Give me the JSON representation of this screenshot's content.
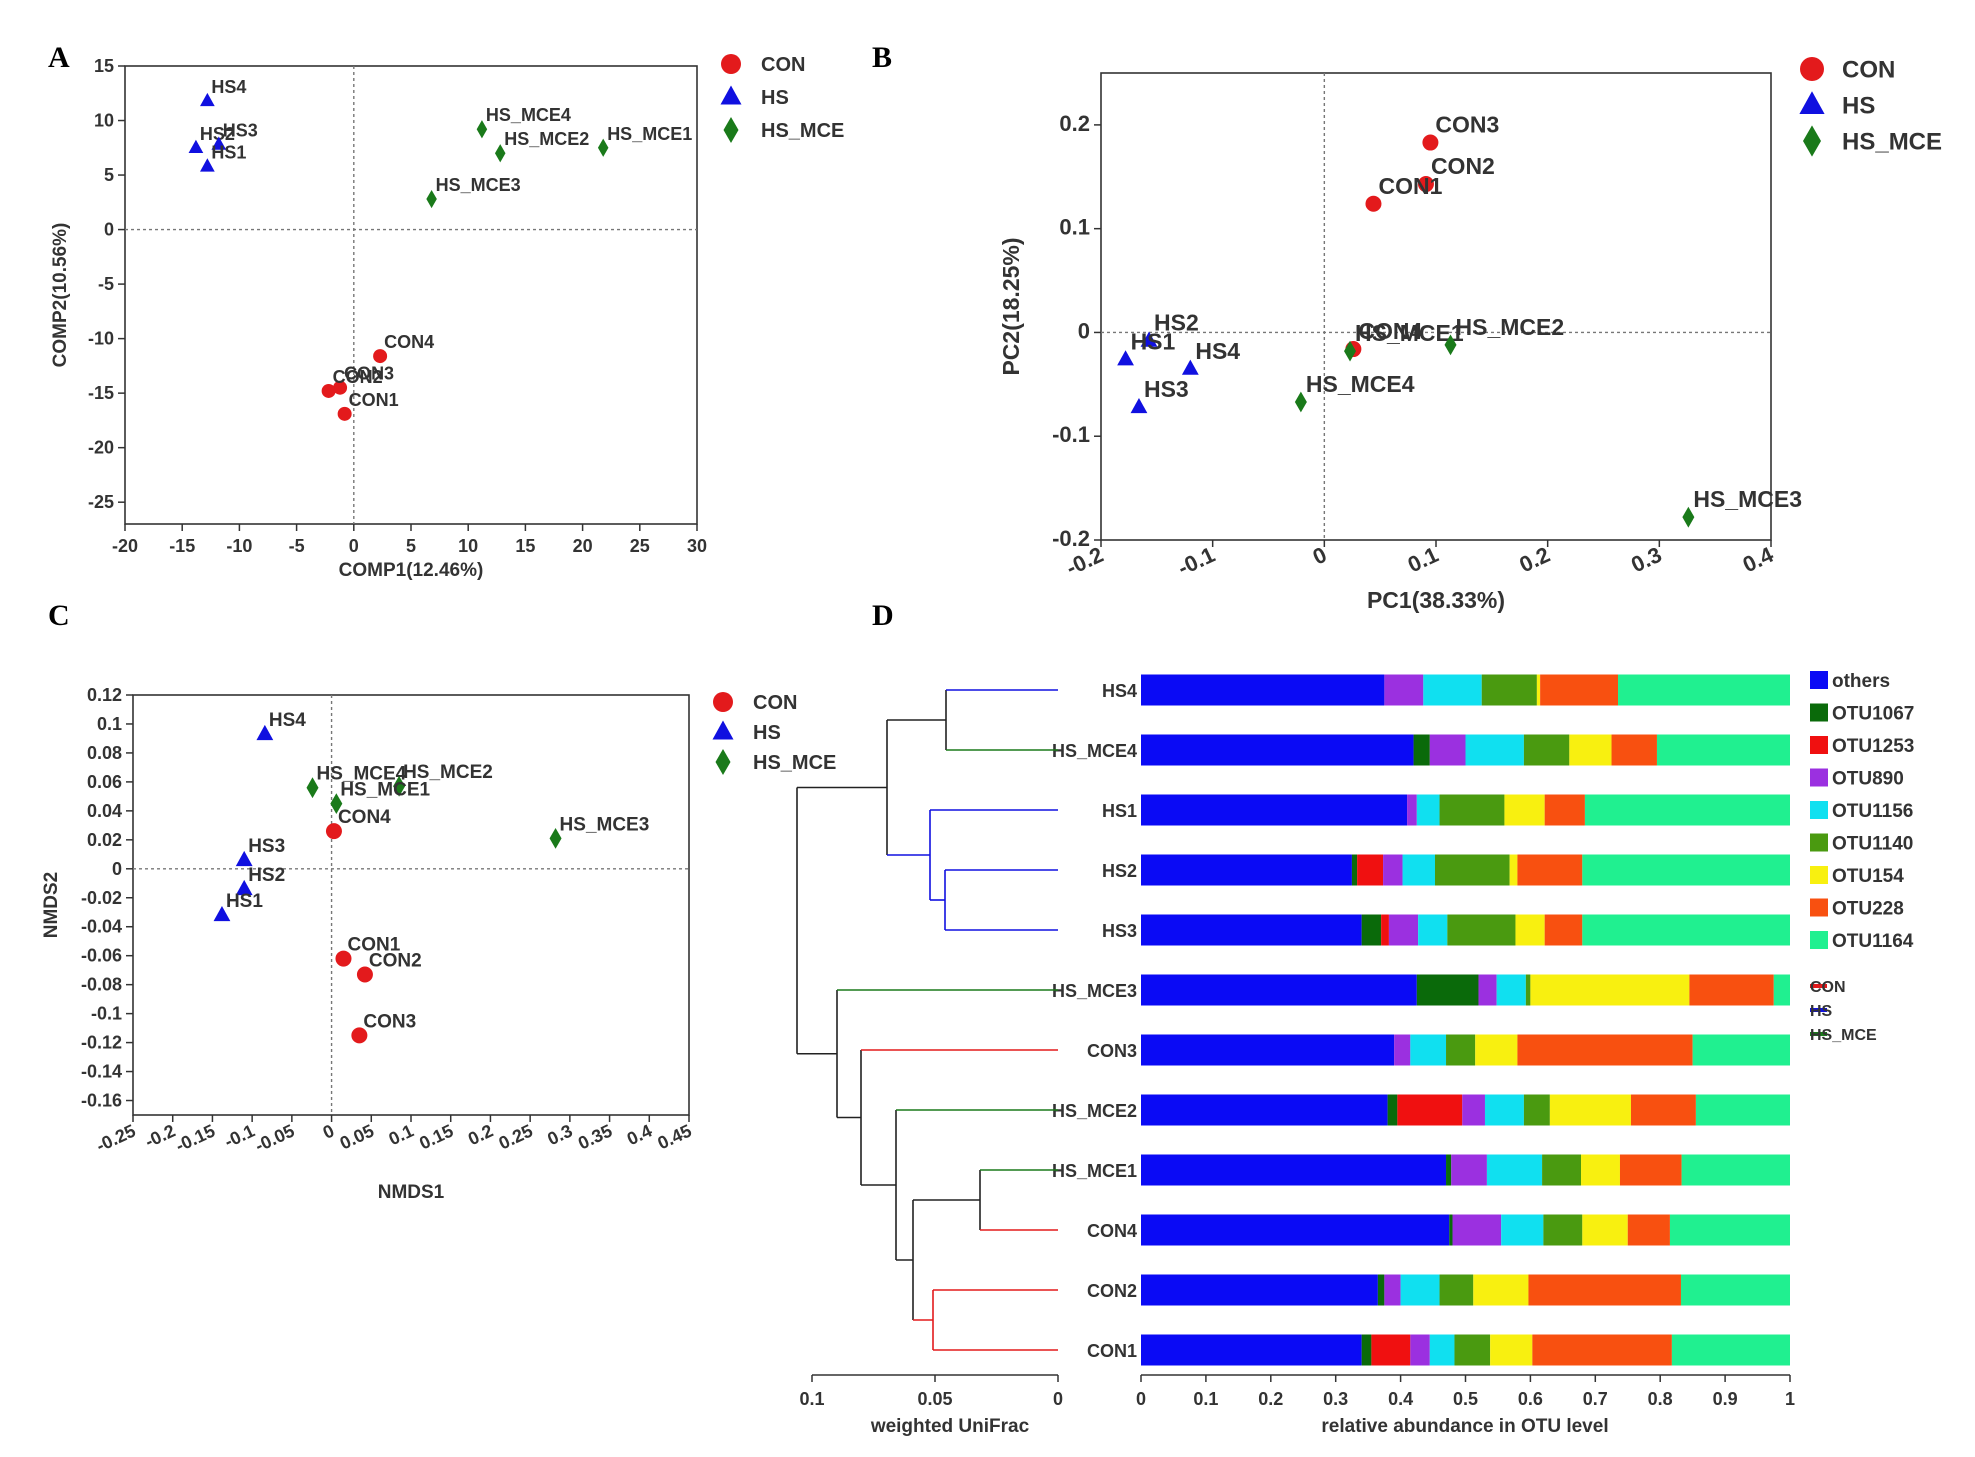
{
  "chart_data": [
    {
      "panel": "A",
      "type": "scatter",
      "xlabel": "COMP1(12.46%)",
      "ylabel": "COMP2(10.56%)",
      "xlim": [
        -20,
        30
      ],
      "ylim": [
        -27,
        15
      ],
      "xticks": [
        -20,
        -15,
        -10,
        -5,
        0,
        5,
        10,
        15,
        20,
        25,
        30
      ],
      "yticks": [
        15,
        10,
        5,
        0,
        -5,
        -10,
        -15,
        -20,
        -25
      ],
      "legend": [
        {
          "name": "CON",
          "shape": "circle",
          "color": "#e31a1c"
        },
        {
          "name": "HS",
          "shape": "triangle",
          "color": "#1010e0"
        },
        {
          "name": "HS_MCE",
          "shape": "diamond",
          "color": "#1a7a1a"
        }
      ],
      "points": [
        {
          "label": "HS4",
          "group": "HS",
          "x": -12.8,
          "y": 11.8
        },
        {
          "label": "HS2",
          "group": "HS",
          "x": -13.8,
          "y": 7.5
        },
        {
          "label": "HS3",
          "group": "HS",
          "x": -11.8,
          "y": 7.8
        },
        {
          "label": "HS1",
          "group": "HS",
          "x": -12.8,
          "y": 5.8
        },
        {
          "label": "HS_MCE4",
          "group": "HS_MCE",
          "x": 11.2,
          "y": 9.2
        },
        {
          "label": "HS_MCE2",
          "group": "HS_MCE",
          "x": 12.8,
          "y": 7.0
        },
        {
          "label": "HS_MCE1",
          "group": "HS_MCE",
          "x": 21.8,
          "y": 7.5
        },
        {
          "label": "HS_MCE3",
          "group": "HS_MCE",
          "x": 6.8,
          "y": 2.8
        },
        {
          "label": "CON4",
          "group": "CON",
          "x": 2.3,
          "y": -11.6
        },
        {
          "label": "CON3",
          "group": "CON",
          "x": -1.2,
          "y": -14.5
        },
        {
          "label": "CON2",
          "group": "CON",
          "x": -2.2,
          "y": -14.8
        },
        {
          "label": "CON1",
          "group": "CON",
          "x": -0.8,
          "y": -16.9
        }
      ]
    },
    {
      "panel": "B",
      "type": "scatter",
      "xlabel": "PC1(38.33%)",
      "ylabel": "PC2(18.25%)",
      "xlim": [
        -0.2,
        0.4
      ],
      "ylim": [
        -0.2,
        0.25
      ],
      "xticks": [
        -0.2,
        -0.1,
        0,
        0.1,
        0.2,
        0.3,
        0.4
      ],
      "yticks": [
        0.2,
        0.1,
        0,
        -0.1,
        -0.2
      ],
      "legend": [
        {
          "name": "CON",
          "shape": "circle",
          "color": "#e31a1c"
        },
        {
          "name": "HS",
          "shape": "triangle",
          "color": "#1010e0"
        },
        {
          "name": "HS_MCE",
          "shape": "diamond",
          "color": "#1a7a1a"
        }
      ],
      "points": [
        {
          "label": "CON3",
          "group": "CON",
          "x": 0.095,
          "y": 0.183
        },
        {
          "label": "CON2",
          "group": "CON",
          "x": 0.091,
          "y": 0.143
        },
        {
          "label": "CON1",
          "group": "CON",
          "x": 0.044,
          "y": 0.124
        },
        {
          "label": "HS2",
          "group": "HS",
          "x": -0.157,
          "y": -0.008
        },
        {
          "label": "HS1",
          "group": "HS",
          "x": -0.178,
          "y": -0.026
        },
        {
          "label": "HS4",
          "group": "HS",
          "x": -0.12,
          "y": -0.035
        },
        {
          "label": "HS3",
          "group": "HS",
          "x": -0.166,
          "y": -0.072
        },
        {
          "label": "CON4",
          "group": "CON",
          "x": 0.026,
          "y": -0.016
        },
        {
          "label": "HS_MCE1",
          "group": "HS_MCE",
          "x": 0.023,
          "y": -0.018
        },
        {
          "label": "HS_MCE2",
          "group": "HS_MCE",
          "x": 0.113,
          "y": -0.012
        },
        {
          "label": "HS_MCE4",
          "group": "HS_MCE",
          "x": -0.021,
          "y": -0.067
        },
        {
          "label": "HS_MCE3",
          "group": "HS_MCE",
          "x": 0.326,
          "y": -0.178
        }
      ]
    },
    {
      "panel": "C",
      "type": "scatter",
      "xlabel": "NMDS1",
      "ylabel": "NMDS2",
      "xlim": [
        -0.25,
        0.45
      ],
      "ylim": [
        -0.17,
        0.12
      ],
      "xticks": [
        -0.25,
        -0.2,
        -0.15,
        -0.1,
        -0.05,
        0,
        0.05,
        0.1,
        0.15,
        0.2,
        0.25,
        0.3,
        0.35,
        0.4,
        0.45
      ],
      "yticks": [
        0.12,
        0.1,
        0.08,
        0.06,
        0.04,
        0.02,
        0,
        -0.02,
        -0.04,
        -0.06,
        -0.08,
        -0.1,
        -0.12,
        -0.14,
        -0.16
      ],
      "legend": [
        {
          "name": "CON",
          "shape": "circle",
          "color": "#e31a1c"
        },
        {
          "name": "HS",
          "shape": "triangle",
          "color": "#1010e0"
        },
        {
          "name": "HS_MCE",
          "shape": "diamond",
          "color": "#1a7a1a"
        }
      ],
      "points": [
        {
          "label": "HS4",
          "group": "HS",
          "x": -0.084,
          "y": 0.093
        },
        {
          "label": "HS_MCE4",
          "group": "HS_MCE",
          "x": -0.024,
          "y": 0.056
        },
        {
          "label": "HS_MCE2",
          "group": "HS_MCE",
          "x": 0.085,
          "y": 0.057
        },
        {
          "label": "HS_MCE1",
          "group": "HS_MCE",
          "x": 0.006,
          "y": 0.045
        },
        {
          "label": "CON4",
          "group": "CON",
          "x": 0.003,
          "y": 0.026
        },
        {
          "label": "HS_MCE3",
          "group": "HS_MCE",
          "x": 0.282,
          "y": 0.021
        },
        {
          "label": "HS3",
          "group": "HS",
          "x": -0.11,
          "y": 0.006
        },
        {
          "label": "HS2",
          "group": "HS",
          "x": -0.11,
          "y": -0.014
        },
        {
          "label": "HS1",
          "group": "HS",
          "x": -0.138,
          "y": -0.032
        },
        {
          "label": "CON1",
          "group": "CON",
          "x": 0.015,
          "y": -0.062
        },
        {
          "label": "CON2",
          "group": "CON",
          "x": 0.042,
          "y": -0.073
        },
        {
          "label": "CON3",
          "group": "CON",
          "x": 0.035,
          "y": -0.115
        }
      ]
    },
    {
      "panel": "D",
      "type": "bar",
      "orientation": "horizontal-stacked",
      "xlabel": "relative abundance in OTU level",
      "xlim": [
        0,
        1
      ],
      "xticks": [
        0,
        0.1,
        0.2,
        0.3,
        0.4,
        0.5,
        0.6,
        0.7,
        0.8,
        0.9,
        1
      ],
      "categories": [
        "HS4",
        "HS_MCE4",
        "HS1",
        "HS2",
        "HS3",
        "HS_MCE3",
        "CON3",
        "HS_MCE2",
        "HS_MCE1",
        "CON4",
        "CON2",
        "CON1"
      ],
      "category_groups": [
        "HS",
        "HS_MCE",
        "HS",
        "HS",
        "HS",
        "HS_MCE",
        "CON",
        "HS_MCE",
        "HS_MCE",
        "CON",
        "CON",
        "CON"
      ],
      "series": [
        {
          "name": "others",
          "color": "#0a0af5",
          "values": [
            0.375,
            0.42,
            0.41,
            0.325,
            0.34,
            0.425,
            0.39,
            0.38,
            0.47,
            0.475,
            0.365,
            0.34
          ]
        },
        {
          "name": "OTU1067",
          "color": "#0a6a0a",
          "values": [
            0.0,
            0.025,
            0.0,
            0.008,
            0.03,
            0.095,
            0.0,
            0.015,
            0.008,
            0.005,
            0.01,
            0.015
          ]
        },
        {
          "name": "OTU1253",
          "color": "#f01010",
          "values": [
            0.0,
            0.0,
            0.0,
            0.04,
            0.012,
            0.0,
            0.0,
            0.1,
            0.0,
            0.0,
            0.0,
            0.06
          ]
        },
        {
          "name": "OTU890",
          "color": "#9b30e0",
          "values": [
            0.06,
            0.055,
            0.015,
            0.03,
            0.045,
            0.028,
            0.025,
            0.035,
            0.055,
            0.075,
            0.025,
            0.03
          ]
        },
        {
          "name": "OTU1156",
          "color": "#10e0f0",
          "values": [
            0.09,
            0.09,
            0.035,
            0.05,
            0.045,
            0.045,
            0.055,
            0.06,
            0.085,
            0.065,
            0.06,
            0.038
          ]
        },
        {
          "name": "OTU1140",
          "color": "#4a9a10",
          "values": [
            0.085,
            0.07,
            0.1,
            0.115,
            0.105,
            0.007,
            0.045,
            0.04,
            0.06,
            0.06,
            0.052,
            0.055
          ]
        },
        {
          "name": "OTU154",
          "color": "#f8f010",
          "values": [
            0.005,
            0.065,
            0.062,
            0.012,
            0.045,
            0.245,
            0.065,
            0.125,
            0.06,
            0.07,
            0.085,
            0.065
          ]
        },
        {
          "name": "OTU228",
          "color": "#f85010",
          "values": [
            0.12,
            0.07,
            0.062,
            0.1,
            0.058,
            0.13,
            0.27,
            0.1,
            0.095,
            0.065,
            0.235,
            0.215
          ]
        },
        {
          "name": "OTU1164",
          "color": "#20f090",
          "values": [
            0.265,
            0.205,
            0.316,
            0.32,
            0.32,
            0.025,
            0.15,
            0.145,
            0.167,
            0.185,
            0.168,
            0.182
          ]
        }
      ],
      "tree": {
        "xlabel": "weighted UniFrac",
        "xticks": [
          0.1,
          0.05,
          0
        ],
        "legend": [
          {
            "name": "CON",
            "color": "#e31a1c"
          },
          {
            "name": "HS",
            "color": "#1010e0"
          },
          {
            "name": "HS_MCE",
            "color": "#1a7a1a"
          }
        ]
      }
    }
  ],
  "panel_letters": {
    "a": "A",
    "b": "B",
    "c": "C",
    "d": "D"
  }
}
